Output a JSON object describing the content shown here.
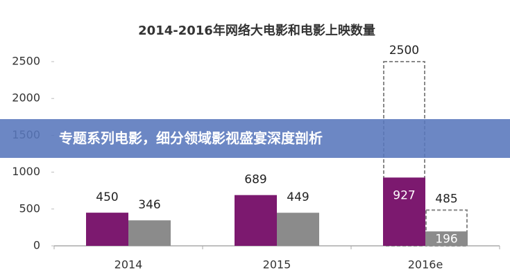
{
  "chart_data": {
    "type": "bar",
    "title": "2014-2016年网络大电影和电影上映数量",
    "categories": [
      "2014",
      "2015",
      "2016e"
    ],
    "series": [
      {
        "color": "#7c196f",
        "values": [
          450,
          689,
          927
        ],
        "projected": [
          null,
          null,
          2500
        ]
      },
      {
        "color": "#8b8b8b",
        "values": [
          346,
          449,
          196
        ],
        "projected": [
          null,
          null,
          485
        ]
      }
    ],
    "ylim": [
      0,
      2500
    ],
    "yticks": [
      0,
      500,
      1000,
      1500,
      2000,
      2500
    ]
  },
  "banner": {
    "text": "专题系列电影，细分领域影视盛宴深度剖析"
  }
}
